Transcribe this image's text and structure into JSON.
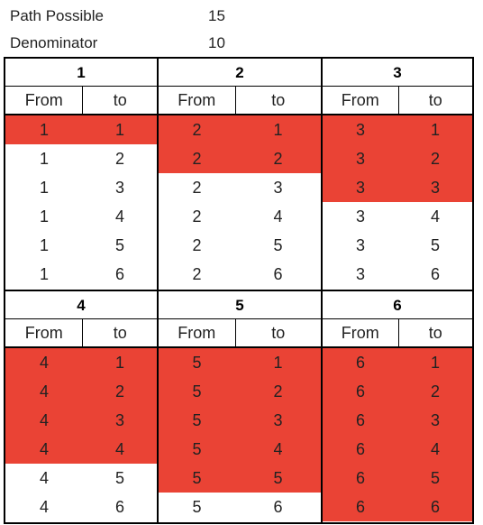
{
  "info": {
    "path_possible_label": "Path Possible",
    "path_possible_value": "15",
    "denominator_label": "Denominator",
    "denominator_value": "10"
  },
  "colors": {
    "highlight": "#ea4335"
  },
  "column_headers": {
    "from": "From",
    "to": "to"
  },
  "blocks": [
    {
      "title": "1",
      "rows": [
        {
          "from": "1",
          "to": "1",
          "highlighted": true
        },
        {
          "from": "1",
          "to": "2",
          "highlighted": false
        },
        {
          "from": "1",
          "to": "3",
          "highlighted": false
        },
        {
          "from": "1",
          "to": "4",
          "highlighted": false
        },
        {
          "from": "1",
          "to": "5",
          "highlighted": false
        },
        {
          "from": "1",
          "to": "6",
          "highlighted": false
        }
      ]
    },
    {
      "title": "2",
      "rows": [
        {
          "from": "2",
          "to": "1",
          "highlighted": true
        },
        {
          "from": "2",
          "to": "2",
          "highlighted": true
        },
        {
          "from": "2",
          "to": "3",
          "highlighted": false
        },
        {
          "from": "2",
          "to": "4",
          "highlighted": false
        },
        {
          "from": "2",
          "to": "5",
          "highlighted": false
        },
        {
          "from": "2",
          "to": "6",
          "highlighted": false
        }
      ]
    },
    {
      "title": "3",
      "rows": [
        {
          "from": "3",
          "to": "1",
          "highlighted": true
        },
        {
          "from": "3",
          "to": "2",
          "highlighted": true
        },
        {
          "from": "3",
          "to": "3",
          "highlighted": true
        },
        {
          "from": "3",
          "to": "4",
          "highlighted": false
        },
        {
          "from": "3",
          "to": "5",
          "highlighted": false
        },
        {
          "from": "3",
          "to": "6",
          "highlighted": false
        }
      ]
    },
    {
      "title": "4",
      "rows": [
        {
          "from": "4",
          "to": "1",
          "highlighted": true
        },
        {
          "from": "4",
          "to": "2",
          "highlighted": true
        },
        {
          "from": "4",
          "to": "3",
          "highlighted": true
        },
        {
          "from": "4",
          "to": "4",
          "highlighted": true
        },
        {
          "from": "4",
          "to": "5",
          "highlighted": false
        },
        {
          "from": "4",
          "to": "6",
          "highlighted": false
        }
      ]
    },
    {
      "title": "5",
      "rows": [
        {
          "from": "5",
          "to": "1",
          "highlighted": true
        },
        {
          "from": "5",
          "to": "2",
          "highlighted": true
        },
        {
          "from": "5",
          "to": "3",
          "highlighted": true
        },
        {
          "from": "5",
          "to": "4",
          "highlighted": true
        },
        {
          "from": "5",
          "to": "5",
          "highlighted": true
        },
        {
          "from": "5",
          "to": "6",
          "highlighted": false
        }
      ]
    },
    {
      "title": "6",
      "rows": [
        {
          "from": "6",
          "to": "1",
          "highlighted": true
        },
        {
          "from": "6",
          "to": "2",
          "highlighted": true
        },
        {
          "from": "6",
          "to": "3",
          "highlighted": true
        },
        {
          "from": "6",
          "to": "4",
          "highlighted": true
        },
        {
          "from": "6",
          "to": "5",
          "highlighted": true
        },
        {
          "from": "6",
          "to": "6",
          "highlighted": true
        }
      ]
    }
  ]
}
